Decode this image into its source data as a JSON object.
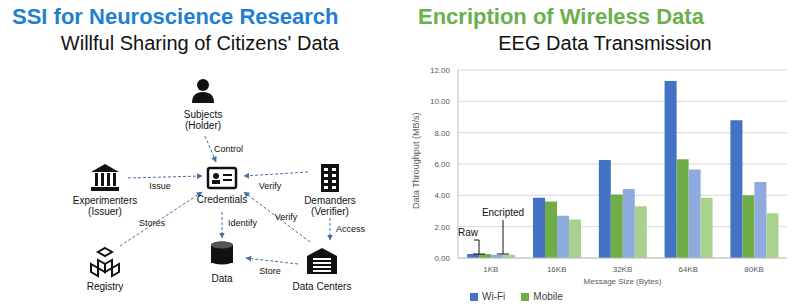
{
  "diagram": {
    "title": "SSI for Neuroscience Research",
    "subtitle": "Willful Sharing of Citizens' Data",
    "nodes": [
      {
        "id": "subjects",
        "label": "Subjects",
        "role": "(Holder)"
      },
      {
        "id": "credentials",
        "label": "Credentials"
      },
      {
        "id": "experimenters",
        "label": "Experimenters",
        "role": "(Issuer)"
      },
      {
        "id": "demanders",
        "label": "Demanders",
        "role": "(Verifier)"
      },
      {
        "id": "registry",
        "label": "Registry"
      },
      {
        "id": "data",
        "label": "Data"
      },
      {
        "id": "datacenters",
        "label": "Data Centers"
      }
    ],
    "edges": [
      {
        "from": "subjects",
        "to": "credentials",
        "label": "Control"
      },
      {
        "from": "experimenters",
        "to": "credentials",
        "label": "Issue"
      },
      {
        "from": "demanders",
        "to": "credentials",
        "label": "Verify"
      },
      {
        "from": "demanders",
        "to": "datacenters",
        "label": "Access"
      },
      {
        "from": "registry",
        "to": "credentials",
        "label": "Stores"
      },
      {
        "from": "credentials",
        "to": "data",
        "label": "Identify"
      },
      {
        "from": "datacenters",
        "to": "credentials",
        "label": "Verify"
      },
      {
        "from": "datacenters",
        "to": "data",
        "label": "Store"
      }
    ]
  },
  "chart_data": {
    "type": "bar",
    "title": "Encription of Wireless Data",
    "subtitle": "EEG Data Transmission",
    "x_label": "Message Size (Bytes)",
    "y_label": "Data Throughput (MB/s)",
    "categories": [
      "1KB",
      "16KB",
      "32KB",
      "64KB",
      "80KB"
    ],
    "series": [
      {
        "name": "Wi-Fi",
        "color": "#4472c4",
        "values": [
          0.25,
          3.85,
          6.25,
          11.3,
          8.8
        ]
      },
      {
        "name": "Mobile",
        "color": "#70ad47",
        "values": [
          0.25,
          3.6,
          4.05,
          6.3,
          4.0
        ]
      },
      {
        "name": "Wi-Fi",
        "color": "#8faadc",
        "values": [
          0.2,
          2.7,
          4.4,
          5.65,
          4.85
        ]
      },
      {
        "name": "Mobile",
        "color": "#a9d18e",
        "values": [
          0.2,
          2.45,
          3.3,
          3.85,
          2.85
        ]
      }
    ],
    "annotations": [
      "Raw",
      "Encripted"
    ],
    "ylim": [
      0,
      12
    ],
    "yticks": [
      {
        "value": 0,
        "label": "0.00"
      },
      {
        "value": 2,
        "label": "2.00"
      },
      {
        "value": 4,
        "label": "4.00"
      },
      {
        "value": 6,
        "label": "6.00"
      },
      {
        "value": 8,
        "label": "8.00"
      },
      {
        "value": 10,
        "label": "10.00"
      },
      {
        "value": 12,
        "label": "12.00"
      }
    ],
    "grid": true,
    "legend": "bottom"
  }
}
